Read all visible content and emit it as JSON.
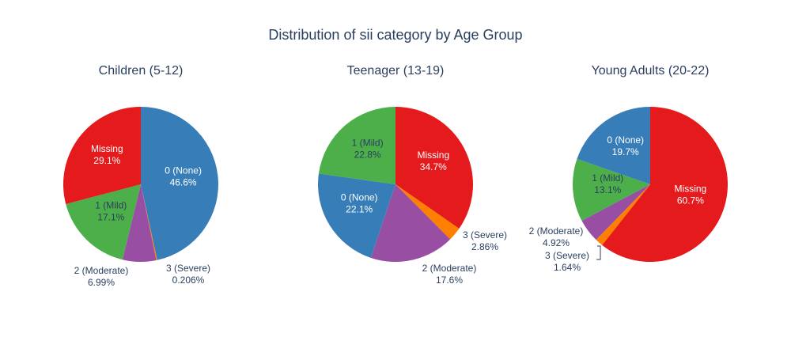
{
  "chart_data": {
    "type": "pie",
    "title": "Distribution of sii category by Age Group",
    "colors": {
      "0 (None)": "#377eb8",
      "1 (Mild)": "#4daf4a",
      "2 (Moderate)": "#984ea3",
      "3 (Severe)": "#ff7f00",
      "Missing": "#e41a1c"
    },
    "pies": [
      {
        "title": "Children (5-12)",
        "slices": [
          {
            "label": "0 (None)",
            "value": 46.6,
            "display": "46.6%"
          },
          {
            "label": "3 (Severe)",
            "value": 0.206,
            "display": "0.206%"
          },
          {
            "label": "2 (Moderate)",
            "value": 6.99,
            "display": "6.99%"
          },
          {
            "label": "1 (Mild)",
            "value": 17.1,
            "display": "17.1%"
          },
          {
            "label": "Missing",
            "value": 29.1,
            "display": "29.1%"
          }
        ]
      },
      {
        "title": "Teenager (13-19)",
        "slices": [
          {
            "label": "Missing",
            "value": 34.7,
            "display": "34.7%"
          },
          {
            "label": "3 (Severe)",
            "value": 2.86,
            "display": "2.86%"
          },
          {
            "label": "2 (Moderate)",
            "value": 17.6,
            "display": "17.6%"
          },
          {
            "label": "0 (None)",
            "value": 22.1,
            "display": "22.1%"
          },
          {
            "label": "1 (Mild)",
            "value": 22.8,
            "display": "22.8%"
          }
        ]
      },
      {
        "title": "Young Adults (20-22)",
        "slices": [
          {
            "label": "Missing",
            "value": 60.7,
            "display": "60.7%"
          },
          {
            "label": "3 (Severe)",
            "value": 1.64,
            "display": "1.64%"
          },
          {
            "label": "2 (Moderate)",
            "value": 4.92,
            "display": "4.92%"
          },
          {
            "label": "1 (Mild)",
            "value": 13.1,
            "display": "13.1%"
          },
          {
            "label": "0 (None)",
            "value": 19.7,
            "display": "19.7%"
          }
        ]
      }
    ]
  }
}
